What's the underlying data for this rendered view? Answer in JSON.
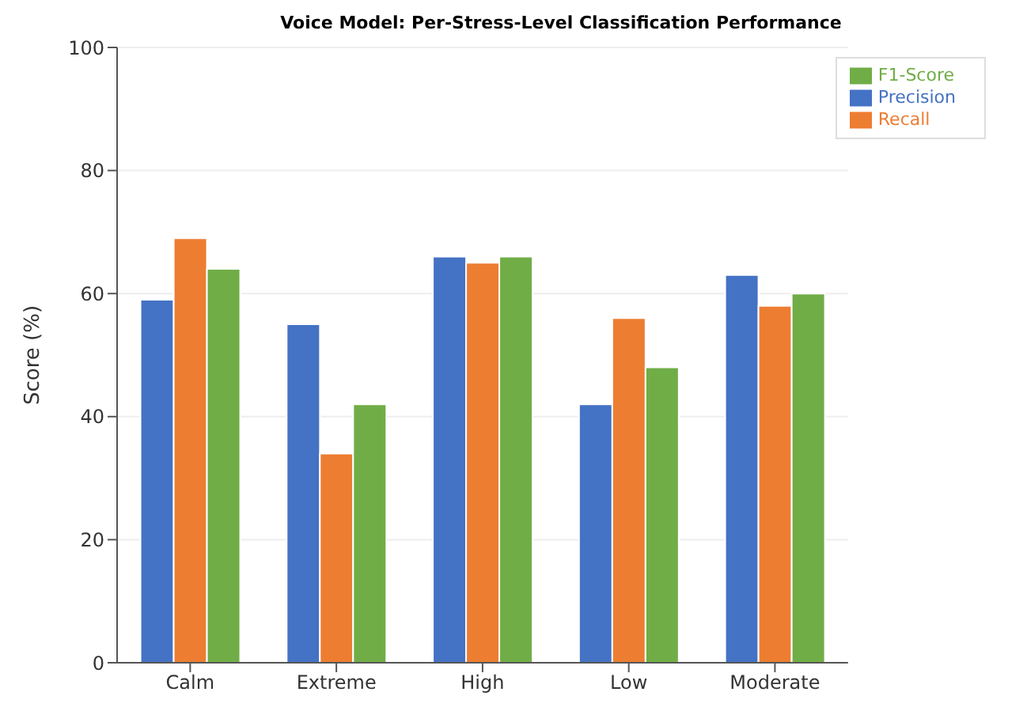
{
  "chart_data": {
    "type": "bar",
    "title": "Voice Model: Per-Stress-Level Classification Performance",
    "ylabel": "Score (%)",
    "categories": [
      "Calm",
      "Extreme",
      "High",
      "Low",
      "Moderate"
    ],
    "series": [
      {
        "name": "Precision",
        "color": "#4472c4",
        "values": [
          59,
          55,
          66,
          42,
          63
        ]
      },
      {
        "name": "Recall",
        "color": "#ed7d31",
        "values": [
          69,
          34,
          65,
          56,
          58
        ]
      },
      {
        "name": "F1-Score",
        "color": "#70ad47",
        "values": [
          64,
          42,
          66,
          48,
          60
        ]
      }
    ],
    "ylim": [
      0,
      100
    ],
    "yticks": [
      0,
      20,
      40,
      60,
      80,
      100
    ],
    "grid": "y",
    "legend": "top right"
  }
}
